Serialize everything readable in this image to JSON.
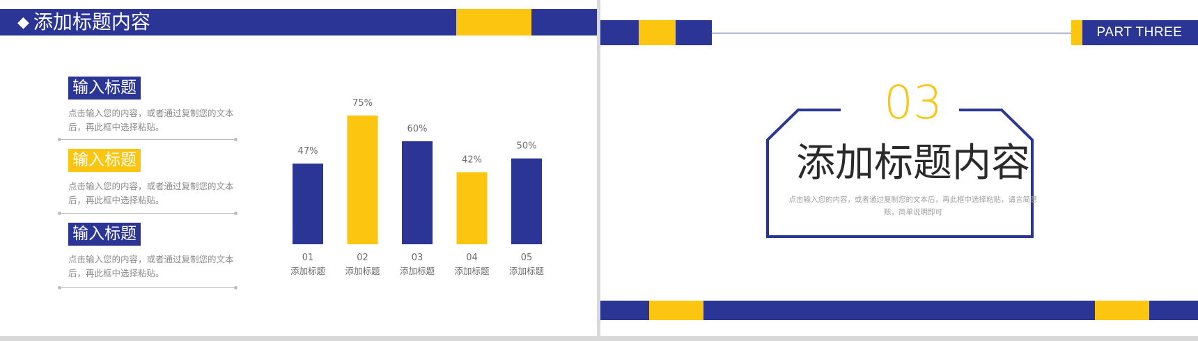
{
  "colors": {
    "blue": "#2b3595",
    "yellow": "#fbc510",
    "gray_text": "#8c8c8c"
  },
  "left_slide": {
    "header": {
      "icon": "diamond-icon",
      "title": "添加标题内容"
    },
    "items": [
      {
        "tag": "输入标题",
        "color": "blue",
        "desc": "点击输入您的内容，或者通过复制您的文本后，再此框中选择粘贴。"
      },
      {
        "tag": "输入标题",
        "color": "yellow",
        "desc": "点击输入您的内容，或者通过复制您的文本后，再此框中选择粘贴。"
      },
      {
        "tag": "输入标题",
        "color": "blue",
        "desc": "点击输入您的内容，或者通过复制您的文本后，再此框中选择粘贴。"
      }
    ]
  },
  "chart_data": {
    "type": "bar",
    "categories": [
      "01",
      "02",
      "03",
      "04",
      "05"
    ],
    "category_labels": [
      "添加标题",
      "添加标题",
      "添加标题",
      "添加标题",
      "添加标题"
    ],
    "values": [
      47,
      75,
      60,
      42,
      50
    ],
    "value_labels": [
      "47%",
      "75%",
      "60%",
      "42%",
      "50%"
    ],
    "bar_colors": [
      "#2b3595",
      "#fbc510",
      "#2b3595",
      "#fbc510",
      "#2b3595"
    ],
    "ylim": [
      0,
      75
    ],
    "grid": false,
    "title": "",
    "xlabel": "",
    "ylabel": ""
  },
  "right_slide": {
    "part_label": "PART THREE",
    "number": "03",
    "title": "添加标题内容",
    "desc": "点击输入您的内容，或者通过复制您的文本后，再此框中选择粘贴，请言简意赅，简单说明即可"
  }
}
